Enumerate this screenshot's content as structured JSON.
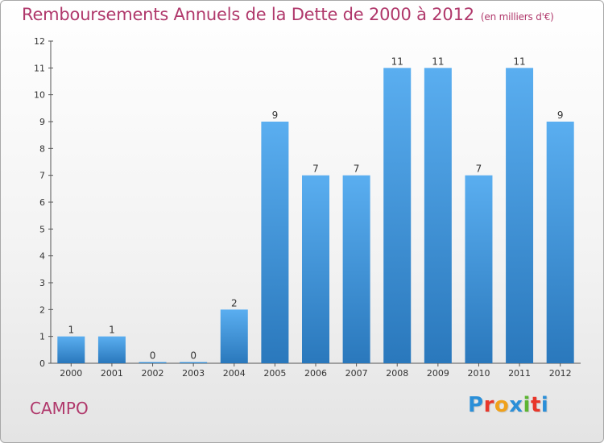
{
  "header": {
    "title": "Remboursements Annuels de la Dette de 2000 à 2012",
    "subtitle": "(en milliers d'€)"
  },
  "commune": "CAMPO",
  "logo": {
    "text": "Proxiti",
    "letters": [
      {
        "char": "P",
        "color": "#2b8fd8"
      },
      {
        "char": "r",
        "color": "#e8362a"
      },
      {
        "char": "o",
        "color": "#f0a11b"
      },
      {
        "char": "x",
        "color": "#2b8fd8"
      },
      {
        "char": "i",
        "color": "#5cb531"
      },
      {
        "char": "t",
        "color": "#e8362a"
      },
      {
        "char": "i",
        "color": "#2b8fd8"
      }
    ]
  },
  "colors": {
    "bar_top": "#5aaef0",
    "bar_bottom": "#2a78bc",
    "title": "#b0386b"
  },
  "chart_data": {
    "type": "bar",
    "title": "Remboursements Annuels de la Dette de 2000 à 2012",
    "subtitle": "(en milliers d'€)",
    "categories": [
      "2000",
      "2001",
      "2002",
      "2003",
      "2004",
      "2005",
      "2006",
      "2007",
      "2008",
      "2009",
      "2010",
      "2011",
      "2012"
    ],
    "values": [
      1,
      1,
      0,
      0,
      2,
      9,
      7,
      7,
      11,
      11,
      7,
      11,
      9
    ],
    "data_labels": [
      "1",
      "1",
      "0",
      "0",
      "2",
      "9",
      "7",
      "7",
      "11",
      "11",
      "7",
      "11",
      "9"
    ],
    "yticks": [
      0,
      1,
      2,
      3,
      4,
      5,
      6,
      7,
      8,
      9,
      10,
      11,
      12
    ],
    "ylim": [
      0,
      12
    ],
    "grid": false,
    "legend": "none"
  }
}
